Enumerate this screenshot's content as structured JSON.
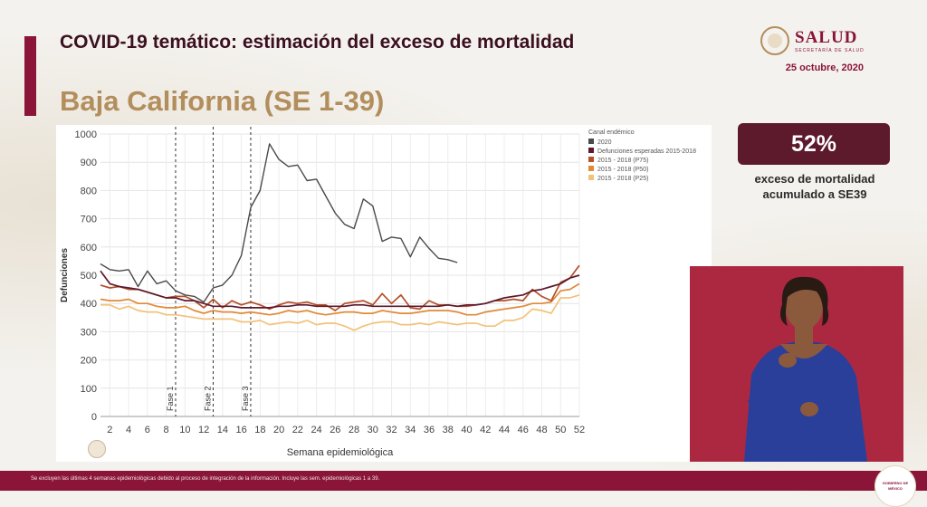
{
  "header": {
    "title": "COVID-19 temático: estimación del exceso de mortalidad",
    "subtitle": "Baja California (SE 1-39)",
    "date": "25 octubre, 2020",
    "logo_name": "SALUD",
    "logo_sub": "SECRETARÍA DE SALUD"
  },
  "summary": {
    "percent": "52%",
    "caption_line1": "exceso de mortalidad",
    "caption_line2": "acumulado a SE39"
  },
  "footer": {
    "note": "Se excluyen las últimas 4 semanas epidemiológicas debido al proceso de integración de la información. Incluye las sem. epidemiológicas 1 a 39.",
    "seal_line1": "GOBIERNO DE",
    "seal_line2": "MÉXICO"
  },
  "colors": {
    "accent": "#8a1538",
    "gold": "#b38e5d",
    "series_2020": "#4a4a4a",
    "expected": "#5d1a2d",
    "p75": "#b4502a",
    "p50": "#e08a36",
    "p25": "#f2c27a",
    "phase_line": "#333333"
  },
  "chart_data": {
    "type": "line",
    "xlabel": "Semana epidemiológica",
    "ylabel": "Defunciones",
    "xlim": [
      1,
      52
    ],
    "ylim": [
      0,
      1000
    ],
    "x_ticks": [
      2,
      4,
      6,
      8,
      10,
      12,
      14,
      16,
      18,
      20,
      22,
      24,
      26,
      28,
      30,
      32,
      34,
      36,
      38,
      40,
      42,
      44,
      46,
      48,
      50,
      52
    ],
    "y_ticks": [
      0,
      100,
      200,
      300,
      400,
      500,
      600,
      700,
      800,
      900,
      1000
    ],
    "legend_title": "Canal endémico",
    "legend_position": "top-right",
    "phases": [
      {
        "label": "Fase 1",
        "x": 9
      },
      {
        "label": "Fase 2",
        "x": 13
      },
      {
        "label": "Fase 3",
        "x": 17
      }
    ],
    "series": [
      {
        "name": "2020",
        "x": [
          1,
          2,
          3,
          4,
          5,
          6,
          7,
          8,
          9,
          10,
          11,
          12,
          13,
          14,
          15,
          16,
          17,
          18,
          19,
          20,
          21,
          22,
          23,
          24,
          25,
          26,
          27,
          28,
          29,
          30,
          31,
          32,
          33,
          34,
          35,
          36,
          37,
          38,
          39
        ],
        "values": [
          540,
          520,
          515,
          520,
          460,
          515,
          470,
          480,
          445,
          430,
          425,
          405,
          455,
          465,
          500,
          570,
          740,
          800,
          965,
          910,
          885,
          890,
          835,
          840,
          780,
          720,
          680,
          665,
          770,
          745,
          620,
          635,
          630,
          565,
          635,
          595,
          560,
          555,
          545
        ]
      },
      {
        "name": "Defunciones esperadas 2015-2018",
        "x": [
          1,
          2,
          3,
          4,
          5,
          6,
          7,
          8,
          9,
          10,
          11,
          12,
          13,
          14,
          15,
          16,
          17,
          18,
          19,
          20,
          21,
          22,
          23,
          24,
          25,
          26,
          27,
          28,
          29,
          30,
          31,
          32,
          33,
          34,
          35,
          36,
          37,
          38,
          39,
          40,
          41,
          42,
          43,
          44,
          45,
          46,
          47,
          48,
          49,
          50,
          51,
          52
        ],
        "values": [
          515,
          470,
          460,
          455,
          450,
          440,
          430,
          420,
          420,
          410,
          410,
          400,
          390,
          390,
          390,
          385,
          385,
          385,
          385,
          390,
          390,
          395,
          395,
          390,
          390,
          390,
          390,
          395,
          395,
          390,
          390,
          390,
          390,
          390,
          390,
          390,
          390,
          395,
          390,
          395,
          395,
          400,
          410,
          420,
          425,
          430,
          445,
          450,
          460,
          470,
          490,
          500
        ]
      },
      {
        "name": "2015 - 2018 (P75)",
        "x": [
          1,
          2,
          3,
          4,
          5,
          6,
          7,
          8,
          9,
          10,
          11,
          12,
          13,
          14,
          15,
          16,
          17,
          18,
          19,
          20,
          21,
          22,
          23,
          24,
          25,
          26,
          27,
          28,
          29,
          30,
          31,
          32,
          33,
          34,
          35,
          36,
          37,
          38,
          39,
          40,
          41,
          42,
          43,
          44,
          45,
          46,
          47,
          48,
          49,
          50,
          51,
          52
        ],
        "values": [
          465,
          455,
          460,
          450,
          450,
          440,
          430,
          420,
          425,
          425,
          410,
          385,
          415,
          385,
          410,
          395,
          405,
          395,
          380,
          395,
          405,
          400,
          405,
          395,
          395,
          375,
          400,
          405,
          410,
          395,
          435,
          400,
          430,
          385,
          380,
          410,
          395,
          395,
          390,
          390,
          395,
          400,
          410,
          410,
          415,
          410,
          450,
          425,
          410,
          475,
          490,
          535
        ]
      },
      {
        "name": "2015 - 2018 (P50)",
        "x": [
          1,
          2,
          3,
          4,
          5,
          6,
          7,
          8,
          9,
          10,
          11,
          12,
          13,
          14,
          15,
          16,
          17,
          18,
          19,
          20,
          21,
          22,
          23,
          24,
          25,
          26,
          27,
          28,
          29,
          30,
          31,
          32,
          33,
          34,
          35,
          36,
          37,
          38,
          39,
          40,
          41,
          42,
          43,
          44,
          45,
          46,
          47,
          48,
          49,
          50,
          51,
          52
        ],
        "values": [
          415,
          410,
          410,
          415,
          400,
          400,
          390,
          385,
          385,
          390,
          375,
          365,
          375,
          370,
          370,
          365,
          370,
          365,
          360,
          365,
          375,
          370,
          375,
          365,
          360,
          365,
          370,
          370,
          365,
          365,
          375,
          370,
          365,
          365,
          370,
          375,
          375,
          375,
          370,
          360,
          360,
          370,
          375,
          380,
          385,
          390,
          400,
          400,
          405,
          445,
          450,
          470
        ]
      },
      {
        "name": "2015 - 2018 (P25)",
        "x": [
          1,
          2,
          3,
          4,
          5,
          6,
          7,
          8,
          9,
          10,
          11,
          12,
          13,
          14,
          15,
          16,
          17,
          18,
          19,
          20,
          21,
          22,
          23,
          24,
          25,
          26,
          27,
          28,
          29,
          30,
          31,
          32,
          33,
          34,
          35,
          36,
          37,
          38,
          39,
          40,
          41,
          42,
          43,
          44,
          45,
          46,
          47,
          48,
          49,
          50,
          51,
          52
        ],
        "values": [
          395,
          395,
          380,
          390,
          375,
          370,
          370,
          360,
          360,
          355,
          350,
          345,
          345,
          345,
          345,
          335,
          335,
          340,
          325,
          330,
          335,
          330,
          340,
          325,
          330,
          330,
          320,
          305,
          320,
          330,
          335,
          335,
          325,
          325,
          330,
          325,
          335,
          330,
          325,
          330,
          330,
          320,
          320,
          340,
          340,
          350,
          380,
          375,
          365,
          420,
          420,
          430
        ]
      }
    ]
  }
}
